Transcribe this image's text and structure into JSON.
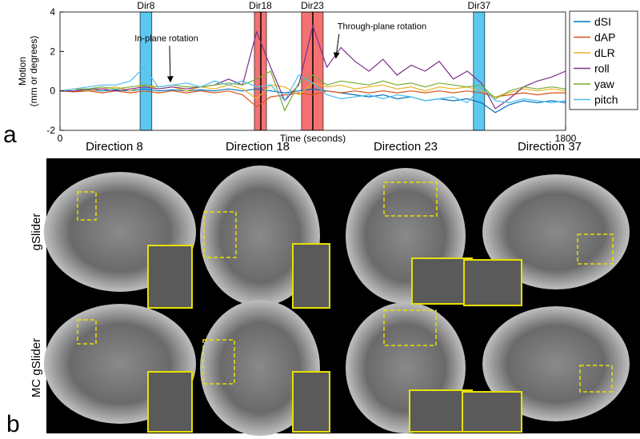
{
  "chart_data": {
    "type": "line",
    "xlabel": "Time (seconds)",
    "ylabel": [
      "Motion",
      "(mm or degrees)"
    ],
    "xlim": [
      0,
      1800
    ],
    "xticks": [
      0,
      1800
    ],
    "ylim": [
      -2,
      4
    ],
    "yticks": [
      -2,
      0,
      2,
      4
    ],
    "x": [
      0,
      50,
      100,
      150,
      200,
      250,
      300,
      350,
      400,
      450,
      500,
      550,
      600,
      650,
      700,
      750,
      800,
      850,
      900,
      950,
      1000,
      1050,
      1100,
      1150,
      1200,
      1250,
      1300,
      1350,
      1400,
      1450,
      1500,
      1550,
      1600,
      1650,
      1700,
      1750,
      1800
    ],
    "series": [
      {
        "name": "dSI",
        "color": "#0072bd",
        "values": [
          0,
          0,
          0.05,
          0,
          0.05,
          0,
          0.1,
          0,
          0.05,
          0,
          0.05,
          0,
          0.1,
          0,
          0.1,
          0,
          -0.1,
          0,
          0.1,
          0,
          -0.1,
          -0.2,
          -0.3,
          -0.2,
          -0.4,
          -0.3,
          -0.5,
          -0.4,
          -0.5,
          -0.4,
          -0.6,
          -1.1,
          -0.7,
          -0.5,
          -0.6,
          -0.5,
          -0.6
        ]
      },
      {
        "name": "dAP",
        "color": "#d95319",
        "values": [
          0,
          -0.05,
          0,
          -0.1,
          0,
          -0.1,
          0,
          -0.1,
          0,
          -0.1,
          0,
          -0.1,
          0,
          -0.2,
          -0.8,
          -0.3,
          -0.2,
          -0.1,
          -0.2,
          0,
          -0.1,
          0,
          -0.1,
          0,
          -0.1,
          0,
          -0.1,
          0,
          -0.1,
          0,
          -0.1,
          -0.3,
          -0.2,
          -0.1,
          -0.2,
          -0.1,
          -0.1
        ]
      },
      {
        "name": "dLR",
        "color": "#edb120",
        "values": [
          0,
          0.1,
          0,
          0.1,
          0.2,
          0,
          0.3,
          0.1,
          0.2,
          0,
          0.2,
          0.1,
          0.3,
          0.1,
          -0.4,
          0.3,
          0.2,
          -0.2,
          0.4,
          0.2,
          0.3,
          0.1,
          0.2,
          0.3,
          0.1,
          0.2,
          0,
          0.2,
          0.1,
          0.2,
          0,
          -0.3,
          -0.1,
          0.1,
          0,
          0.1,
          0
        ]
      },
      {
        "name": "roll",
        "color": "#7e2f8e",
        "values": [
          0,
          0,
          0.1,
          0.1,
          0,
          0.1,
          0.2,
          0.1,
          0.2,
          0.1,
          0.2,
          0.3,
          0.6,
          0.3,
          3.0,
          1.2,
          -0.5,
          0.3,
          3.3,
          1.2,
          2.2,
          1.5,
          1.0,
          1.6,
          0.8,
          1.3,
          1.0,
          1.5,
          0.6,
          1.0,
          0.4,
          -0.9,
          -0.4,
          0.2,
          0.5,
          0.7,
          1.0
        ]
      },
      {
        "name": "yaw",
        "color": "#77ac30",
        "values": [
          0,
          0.1,
          0.1,
          0.2,
          0.1,
          0.2,
          0.3,
          0.2,
          0.3,
          0.2,
          0.2,
          0.3,
          0.4,
          0.3,
          0.6,
          1.0,
          -1.0,
          0.4,
          0.8,
          0.3,
          0.5,
          0.4,
          0.3,
          0.5,
          0.3,
          0.4,
          0.2,
          0.4,
          0.3,
          0.2,
          0.3,
          -0.4,
          0,
          0.2,
          0.1,
          0.2,
          0.1
        ]
      },
      {
        "name": "pitch",
        "color": "#4dbeee",
        "values": [
          0,
          0.1,
          0.2,
          0.3,
          0.3,
          0.5,
          1.2,
          0.2,
          0.3,
          0.4,
          0.2,
          0.5,
          0.3,
          0.5,
          0.2,
          0.3,
          -0.5,
          0.8,
          0.4,
          -0.2,
          -0.4,
          -0.3,
          -0.2,
          -0.4,
          -0.2,
          -0.3,
          -0.5,
          -0.4,
          -0.3,
          -0.6,
          0.2,
          -0.5,
          -0.6,
          -0.4,
          -0.5,
          -0.6,
          -0.5
        ]
      }
    ],
    "highlights": [
      {
        "label": "Dir8",
        "start": 285,
        "end": 327,
        "color": "#5bc8f0"
      },
      {
        "label": "Dir18",
        "start": 692,
        "end": 735,
        "color": "#f47171",
        "marker": 715
      },
      {
        "label": "Dir23",
        "start": 860,
        "end": 937,
        "color": "#f47171",
        "marker": 900
      },
      {
        "label": "Dir37",
        "start": 1472,
        "end": 1512,
        "color": "#5bc8f0"
      }
    ],
    "annotations": [
      {
        "text": "In-plane rotation",
        "x": 393,
        "y": 0.3
      },
      {
        "text": "Through-plane rotation",
        "x": 982,
        "y": 1.5
      }
    ]
  },
  "panel_labels": [
    "a",
    "b"
  ],
  "images": {
    "columns": [
      "Direction 8",
      "Direction 18",
      "Direction 23",
      "Direction 37"
    ],
    "rows": [
      "gSlider",
      "MC gSlider"
    ]
  }
}
